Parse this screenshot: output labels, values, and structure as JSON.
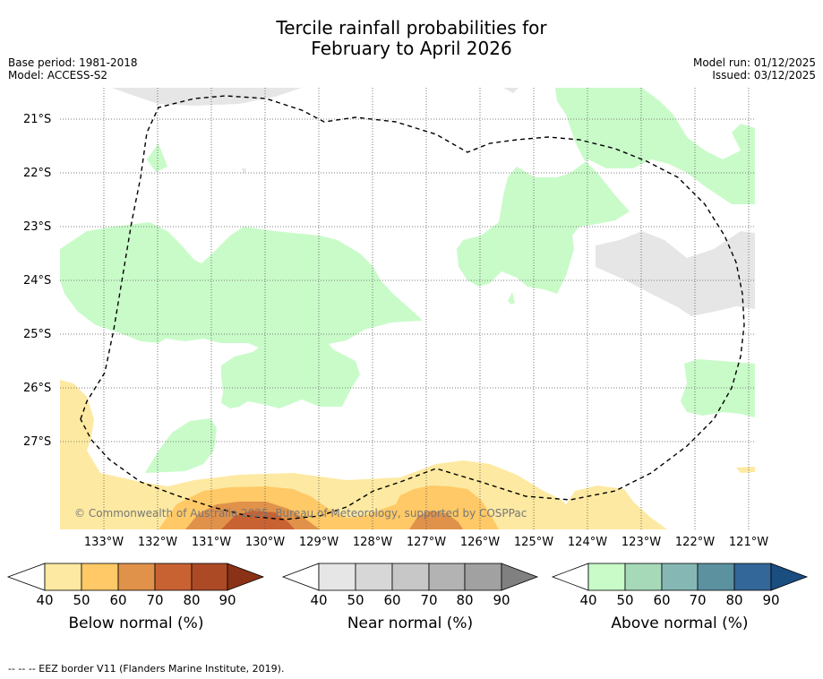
{
  "title": {
    "line1": "Tercile rainfall probabilities for",
    "line2": "February to April 2026"
  },
  "meta": {
    "base_period": "Base period: 1981-2018",
    "model": "Model: ACCESS-S2",
    "model_run": "Model run: 01/12/2025",
    "issued": "Issued: 03/12/2025"
  },
  "map": {
    "latitude_labels": [
      "21°S",
      "22°S",
      "23°S",
      "24°S",
      "25°S",
      "26°S",
      "27°S"
    ],
    "longitude_labels": [
      "133°W",
      "132°W",
      "131°W",
      "130°W",
      "129°W",
      "128°W",
      "127°W",
      "126°W",
      "125°W",
      "124°W",
      "123°W",
      "122°W",
      "121°W"
    ],
    "copyright": "© Commonwealth of Australia 2025, Bureau of Meteorology, supported by COSPPac",
    "colors": {
      "below_50": "#fde9a1",
      "below_60": "#fec966",
      "below_70": "#e0924a",
      "below_80": "#c96233",
      "near_40": "#e6e6e6",
      "above_40": "#c9fbc9",
      "grid": "#555555",
      "eez": "#000000"
    }
  },
  "colorbars": [
    {
      "title": "Below normal (%)",
      "ticks": [
        "40",
        "50",
        "60",
        "70",
        "80",
        "90"
      ],
      "colors": [
        "#ffffff",
        "#fde9a1",
        "#fec966",
        "#e0924a",
        "#c96233",
        "#ad4a26",
        "#8b3115"
      ]
    },
    {
      "title": "Near normal (%)",
      "ticks": [
        "40",
        "50",
        "60",
        "70",
        "80",
        "90"
      ],
      "colors": [
        "#ffffff",
        "#e6e6e6",
        "#d7d7d7",
        "#c7c7c7",
        "#b3b3b3",
        "#a1a1a1",
        "#808080"
      ]
    },
    {
      "title": "Above normal (%)",
      "ticks": [
        "40",
        "50",
        "60",
        "70",
        "80",
        "90"
      ],
      "colors": [
        "#ffffff",
        "#c9fbc9",
        "#a6d9b8",
        "#85b8b4",
        "#5c91a0",
        "#336699",
        "#1a4d80"
      ]
    }
  ],
  "footnote": "-- -- -- EEZ border V11 (Flanders Marine Institute, 2019)."
}
